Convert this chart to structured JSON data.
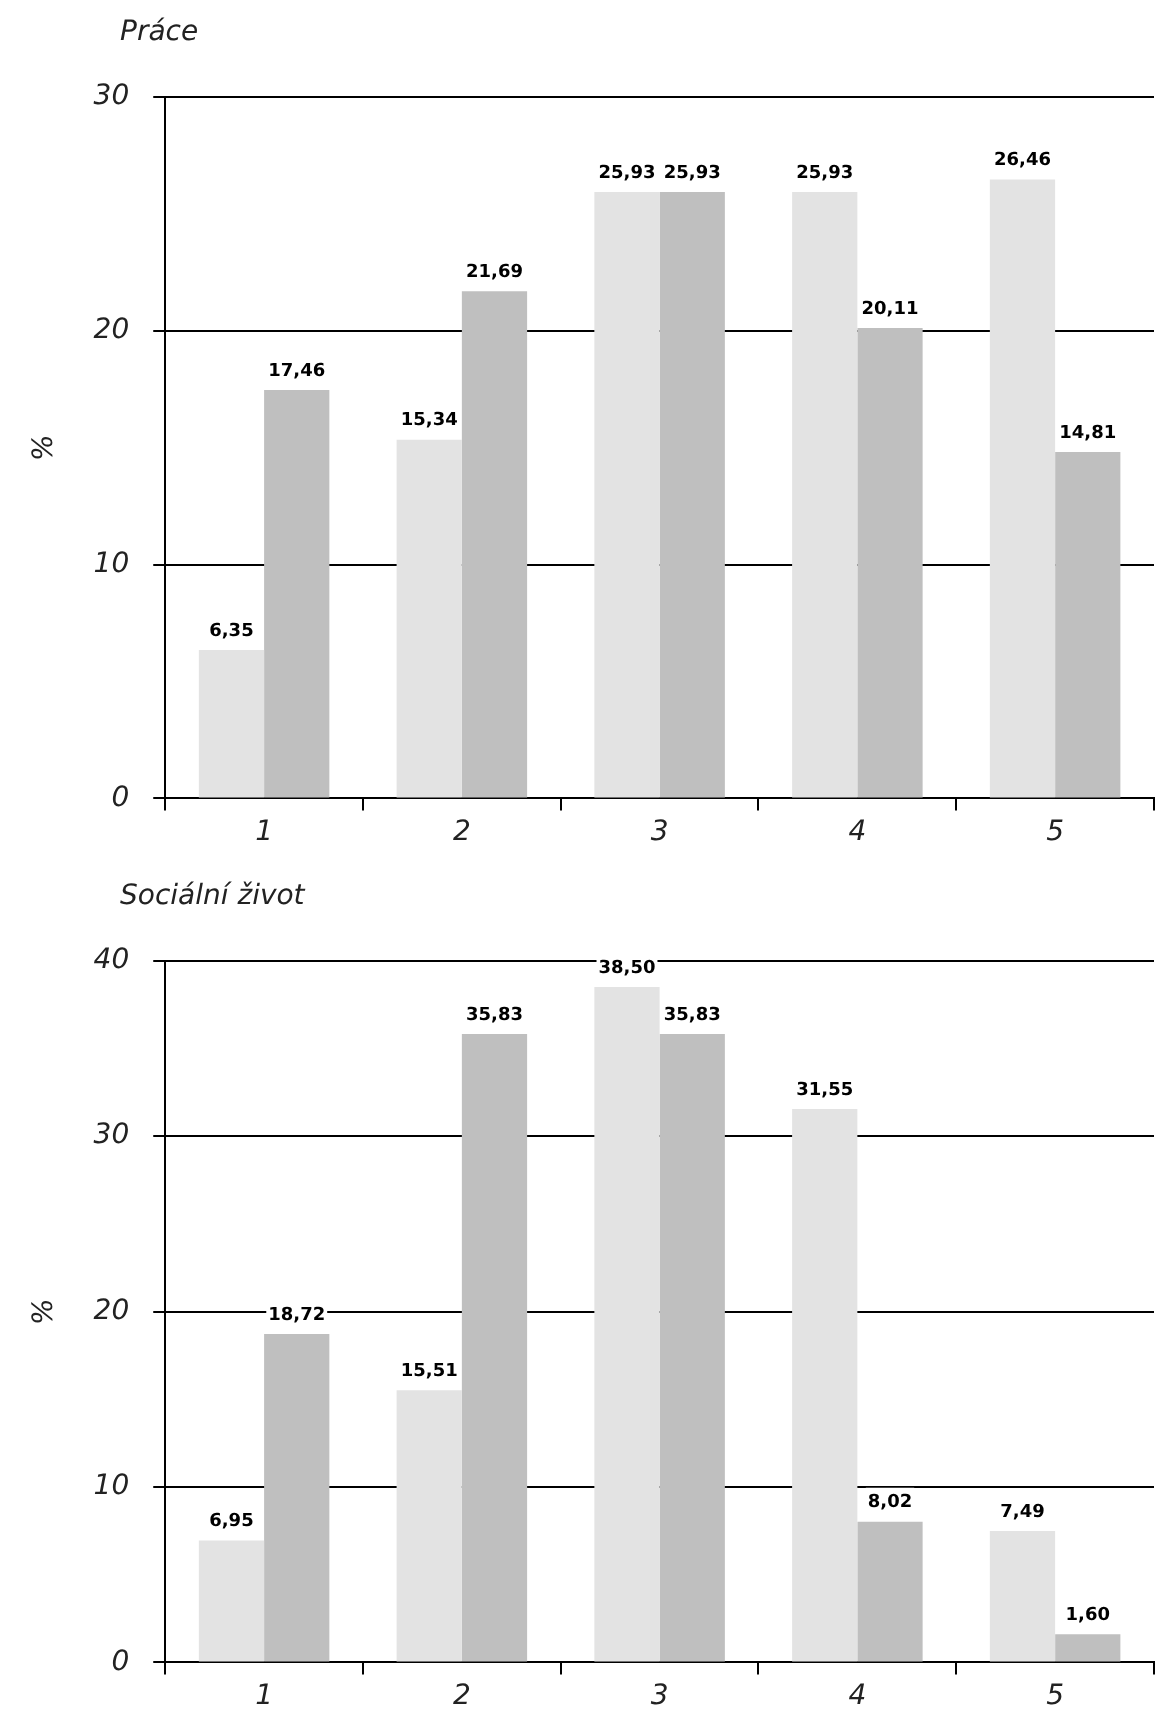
{
  "chart_data": [
    {
      "type": "bar",
      "title": "Práce",
      "ylabel": "%",
      "categories": [
        "1",
        "2",
        "3",
        "4",
        "5"
      ],
      "series": [
        {
          "color": "#e3e3e3",
          "values": [
            6.35,
            15.34,
            25.93,
            25.93,
            26.46
          ],
          "value_labels": [
            "6,35",
            "15,34",
            "25,93",
            "25,93",
            "26,46"
          ]
        },
        {
          "color": "#bfbfbf",
          "values": [
            17.46,
            21.69,
            25.93,
            20.11,
            14.81
          ],
          "value_labels": [
            "17,46",
            "21,69",
            "25,93",
            "20,11",
            "14,81"
          ]
        }
      ],
      "ylim": [
        0,
        30
      ],
      "yticks": [
        0,
        10,
        20,
        30
      ],
      "grid": "y"
    },
    {
      "type": "bar",
      "title": "Sociální život",
      "ylabel": "%",
      "categories": [
        "1",
        "2",
        "3",
        "4",
        "5"
      ],
      "series": [
        {
          "color": "#e3e3e3",
          "values": [
            6.95,
            15.51,
            38.5,
            31.55,
            7.49
          ],
          "value_labels": [
            "6,95",
            "15,51",
            "38,50",
            "31,55",
            "7,49"
          ]
        },
        {
          "color": "#bfbfbf",
          "values": [
            18.72,
            35.83,
            35.83,
            8.02,
            1.6
          ],
          "value_labels": [
            "18,72",
            "35,83",
            "35,83",
            "8,02",
            "1,60"
          ]
        }
      ],
      "ylim": [
        0,
        40
      ],
      "yticks": [
        0,
        10,
        20,
        30,
        40
      ],
      "grid": "y"
    }
  ]
}
